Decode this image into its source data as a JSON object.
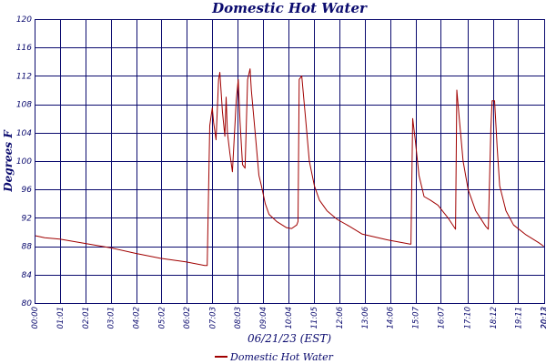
{
  "chart_data": {
    "type": "line",
    "title": "Domestic Hot Water",
    "xlabel": "06/21/23 (EST)",
    "ylabel": "Degrees F",
    "ylim": [
      80,
      120
    ],
    "yticks": [
      80,
      84,
      88,
      92,
      96,
      100,
      104,
      108,
      112,
      116,
      120
    ],
    "x_tick_labels": [
      "00:00",
      "01:01",
      "02:01",
      "03:01",
      "04:02",
      "05:02",
      "06:02",
      "07:03",
      "08:03",
      "09:04",
      "10:04",
      "11:05",
      "12:06",
      "13:06",
      "14:06",
      "15:07",
      "16:07",
      "17:10",
      "18:12",
      "19:11",
      "20:12",
      "20:13"
    ],
    "grid": true,
    "legend": "bottom-center",
    "series": [
      {
        "name": "Domestic Hot Water",
        "color": "#a00000",
        "x_unit": "hours",
        "x": [
          0.0,
          0.4,
          1.0,
          2.0,
          3.0,
          4.0,
          5.0,
          6.0,
          6.75,
          6.85,
          6.95,
          7.05,
          7.1,
          7.2,
          7.3,
          7.35,
          7.45,
          7.55,
          7.6,
          7.65,
          7.75,
          7.85,
          8.0,
          8.08,
          8.15,
          8.25,
          8.35,
          8.45,
          8.55,
          8.6,
          8.75,
          8.9,
          9.0,
          9.15,
          9.3,
          9.6,
          10.0,
          10.2,
          10.4,
          10.45,
          10.5,
          10.6,
          10.75,
          10.9,
          11.1,
          11.3,
          11.6,
          12.0,
          12.5,
          13.0,
          14.0,
          14.9,
          14.93,
          15.0,
          15.1,
          15.25,
          15.45,
          15.7,
          16.0,
          16.4,
          16.7,
          16.75,
          16.85,
          17.0,
          17.2,
          17.5,
          17.9,
          18.0,
          18.1,
          18.15,
          18.25,
          18.35,
          18.45,
          18.7,
          19.0,
          19.5,
          20.0,
          20.2
        ],
        "y": [
          89.5,
          89.2,
          89.0,
          88.4,
          87.8,
          87.0,
          86.3,
          85.8,
          85.3,
          85.3,
          105.0,
          107.5,
          105.5,
          103.0,
          111.5,
          112.5,
          107.0,
          103.5,
          109.0,
          104.0,
          101.0,
          98.5,
          108.5,
          111.5,
          105.5,
          99.5,
          99.0,
          111.5,
          113.0,
          110.0,
          104.0,
          98.0,
          96.5,
          94.0,
          92.5,
          91.5,
          90.6,
          90.5,
          91.0,
          91.5,
          111.5,
          112.0,
          106.0,
          100.0,
          96.5,
          94.5,
          93.0,
          91.8,
          90.8,
          89.7,
          88.9,
          88.3,
          88.3,
          106.0,
          103.0,
          98.0,
          95.0,
          94.5,
          93.8,
          92.0,
          90.4,
          110.0,
          106.0,
          100.0,
          96.0,
          93.0,
          90.8,
          90.4,
          104.5,
          108.5,
          108.5,
          102.0,
          96.5,
          93.0,
          91.0,
          89.6,
          88.5,
          88.0
        ]
      }
    ]
  }
}
